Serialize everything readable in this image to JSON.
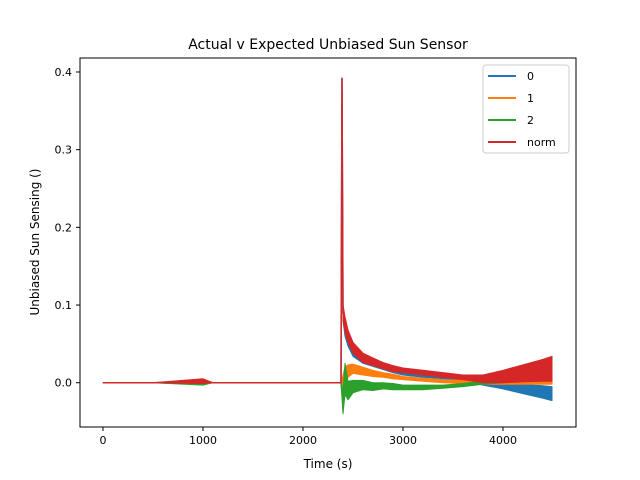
{
  "chart_data": {
    "type": "line",
    "title": "Actual v Expected Unbiased Sun Sensor",
    "xlabel": "Time (s)",
    "ylabel": "Unbiased Sun Sensing ()",
    "xlim": [
      -230,
      4730
    ],
    "ylim": [
      -0.057,
      0.418
    ],
    "xticks": [
      0,
      1000,
      2000,
      3000,
      4000
    ],
    "xtick_labels": [
      "0",
      "1000",
      "2000",
      "3000",
      "4000"
    ],
    "yticks": [
      0.0,
      0.1,
      0.2,
      0.3,
      0.4
    ],
    "ytick_labels": [
      "0.0",
      "0.1",
      "0.2",
      "0.3",
      "0.4"
    ],
    "grid": false,
    "legend_position": "top-right",
    "series": [
      {
        "name": "0",
        "color": "#1f77b4",
        "x": [
          0,
          500,
          1000,
          1100,
          1500,
          2000,
          2380,
          2390,
          2400,
          2420,
          2450,
          2500,
          2600,
          2700,
          2800,
          2900,
          3000,
          3200,
          3400,
          3600,
          3800,
          4000,
          4200,
          4400,
          4490
        ],
        "values": [
          0.0,
          0.0,
          0.0,
          0.0,
          0.0,
          0.0,
          0.0,
          0.392,
          0.09,
          0.07,
          0.055,
          0.04,
          0.03,
          0.025,
          0.02,
          0.016,
          0.013,
          0.01,
          0.007,
          0.004,
          0.0,
          -0.004,
          -0.008,
          -0.012,
          -0.014
        ],
        "band": [
          0,
          0,
          0.002,
          0,
          0,
          0,
          0,
          0,
          0.01,
          0.01,
          0.008,
          0.006,
          0.005,
          0.004,
          0.003,
          0.003,
          0.003,
          0.003,
          0.002,
          0.002,
          0.003,
          0.004,
          0.006,
          0.008,
          0.009
        ]
      },
      {
        "name": "1",
        "color": "#ff7f0e",
        "x": [
          0,
          500,
          1000,
          1100,
          1500,
          2000,
          2380,
          2400,
          2420,
          2450,
          2500,
          2600,
          2700,
          2800,
          2900,
          3000,
          3200,
          3400,
          3600,
          3800,
          4000,
          4200,
          4400,
          4490
        ],
        "values": [
          0.0,
          0.0,
          0.0,
          0.0,
          0.0,
          0.0,
          0.0,
          0.0,
          0.01,
          0.015,
          0.018,
          0.015,
          0.012,
          0.01,
          0.008,
          0.006,
          0.004,
          0.002,
          0.001,
          0.0,
          0.001,
          0.002,
          0.003,
          0.004
        ],
        "band": [
          0,
          0,
          0.002,
          0,
          0,
          0,
          0,
          0.01,
          0.01,
          0.008,
          0.006,
          0.005,
          0.004,
          0.003,
          0.003,
          0.002,
          0.002,
          0.002,
          0.002,
          0.002,
          0.003,
          0.004,
          0.005,
          0.006
        ]
      },
      {
        "name": "2",
        "color": "#2ca02c",
        "x": [
          0,
          500,
          1000,
          1100,
          1500,
          2000,
          2380,
          2400,
          2420,
          2450,
          2500,
          2600,
          2700,
          2800,
          2900,
          3000,
          3200,
          3400,
          3600,
          3800,
          4000,
          4200,
          4400,
          4490
        ],
        "values": [
          0.0,
          0.0,
          0.0,
          0.0,
          0.0,
          0.0,
          0.0,
          -0.025,
          0.005,
          -0.01,
          -0.005,
          -0.003,
          -0.005,
          -0.004,
          -0.005,
          -0.006,
          -0.006,
          -0.005,
          -0.003,
          0.0,
          0.003,
          0.006,
          0.009,
          0.011
        ],
        "band": [
          0,
          0,
          0.003,
          0,
          0,
          0,
          0,
          0.015,
          0.02,
          0.012,
          0.008,
          0.006,
          0.005,
          0.004,
          0.004,
          0.003,
          0.003,
          0.002,
          0.002,
          0.002,
          0.003,
          0.004,
          0.005,
          0.006
        ]
      },
      {
        "name": "norm",
        "color": "#d62728",
        "x": [
          0,
          500,
          1000,
          1100,
          1500,
          2000,
          2380,
          2390,
          2400,
          2420,
          2450,
          2500,
          2600,
          2700,
          2800,
          2900,
          3000,
          3200,
          3400,
          3600,
          3800,
          4000,
          4200,
          4400,
          4490
        ],
        "values": [
          0.0,
          0.0,
          0.002,
          0.0,
          0.0,
          0.0,
          0.0,
          0.392,
          0.09,
          0.075,
          0.06,
          0.045,
          0.032,
          0.027,
          0.022,
          0.018,
          0.016,
          0.013,
          0.01,
          0.007,
          0.005,
          0.008,
          0.012,
          0.016,
          0.018
        ],
        "band": [
          0,
          0,
          0.003,
          0,
          0,
          0,
          0,
          0,
          0.01,
          0.01,
          0.008,
          0.007,
          0.006,
          0.005,
          0.004,
          0.004,
          0.003,
          0.003,
          0.003,
          0.003,
          0.005,
          0.008,
          0.011,
          0.014,
          0.016
        ]
      }
    ]
  }
}
